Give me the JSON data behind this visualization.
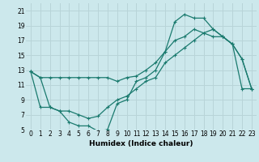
{
  "title": "",
  "xlabel": "Humidex (Indice chaleur)",
  "bg_color": "#cce8ec",
  "grid_color": "#b8d4d8",
  "line_color": "#1a7a6e",
  "xlim": [
    -0.5,
    23.5
  ],
  "ylim": [
    5,
    22
  ],
  "xticks": [
    0,
    1,
    2,
    3,
    4,
    5,
    6,
    7,
    8,
    9,
    10,
    11,
    12,
    13,
    14,
    15,
    16,
    17,
    18,
    19,
    20,
    21,
    22,
    23
  ],
  "yticks": [
    5,
    7,
    9,
    11,
    13,
    15,
    17,
    19,
    21
  ],
  "line1_x": [
    0,
    1,
    2,
    3,
    4,
    5,
    6,
    7,
    8,
    9,
    10,
    11,
    12,
    13,
    14,
    15,
    16,
    17,
    18,
    19,
    20,
    21,
    22,
    23
  ],
  "line1_y": [
    12.8,
    12.0,
    12.0,
    12.0,
    12.0,
    12.0,
    12.0,
    12.0,
    12.0,
    11.5,
    12.0,
    12.2,
    13.0,
    14.0,
    15.5,
    17.0,
    17.5,
    18.5,
    18.0,
    17.5,
    17.5,
    16.5,
    14.5,
    10.5
  ],
  "line2_x": [
    0,
    1,
    2,
    3,
    4,
    5,
    6,
    7,
    8,
    9,
    10,
    11,
    12,
    13,
    14,
    15,
    16,
    17,
    18,
    19,
    20,
    21,
    22,
    23
  ],
  "line2_y": [
    12.8,
    12.0,
    8.0,
    7.5,
    6.0,
    5.5,
    5.5,
    4.8,
    5.0,
    8.5,
    9.0,
    11.5,
    12.0,
    13.0,
    15.5,
    19.5,
    20.5,
    20.0,
    20.0,
    18.5,
    17.5,
    16.5,
    14.5,
    10.5
  ],
  "line3_x": [
    0,
    1,
    2,
    3,
    4,
    5,
    6,
    7,
    8,
    9,
    10,
    11,
    12,
    13,
    14,
    15,
    16,
    17,
    18,
    19,
    20,
    21,
    22,
    23
  ],
  "line3_y": [
    12.8,
    8.0,
    8.0,
    7.5,
    7.5,
    7.0,
    6.5,
    6.8,
    8.0,
    9.0,
    9.5,
    10.5,
    11.5,
    12.0,
    14.0,
    15.0,
    16.0,
    17.0,
    18.0,
    18.5,
    17.5,
    16.5,
    10.5,
    10.5
  ],
  "tick_fontsize": 5.5,
  "xlabel_fontsize": 6.5
}
